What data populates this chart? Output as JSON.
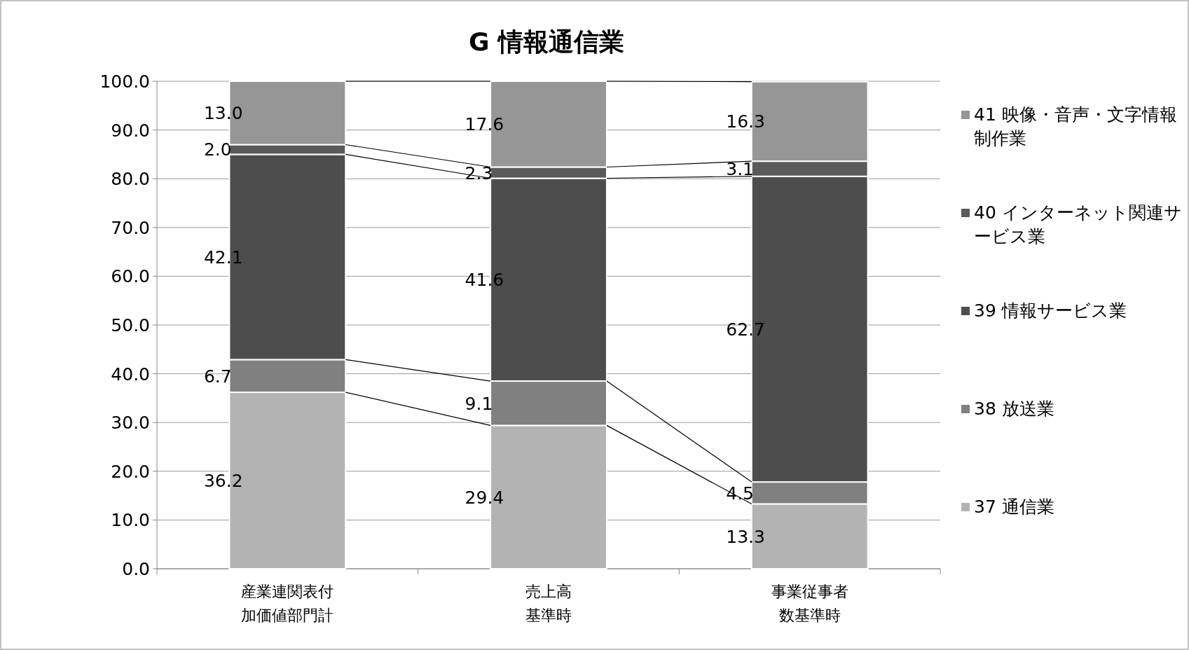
{
  "chart_data": {
    "type": "bar",
    "stacked": true,
    "title": "G 情報通信業",
    "categories": [
      "産業連関表付加価値部門計",
      "売上高基準時",
      "事業従事者数基準時"
    ],
    "series": [
      {
        "name": "37 通信業",
        "color": "#b3b3b3",
        "values": [
          36.2,
          29.4,
          13.3
        ],
        "value_labels": [
          "36.2",
          "29.4",
          "13.3"
        ]
      },
      {
        "name": "38 放送業",
        "color": "#808080",
        "values": [
          6.7,
          9.1,
          4.5
        ],
        "value_labels": [
          "6.7",
          "9.1",
          "4.5"
        ]
      },
      {
        "name": "39 情報サービス業",
        "color": "#4d4d4d",
        "values": [
          42.1,
          41.6,
          62.7
        ],
        "value_labels": [
          "42.1",
          "41.6",
          "62.7"
        ]
      },
      {
        "name": "40 インターネット関連サービス業",
        "color": "#5a5a5a",
        "values": [
          2.0,
          2.3,
          3.1
        ],
        "value_labels": [
          "2.0",
          "2.3",
          "3.1"
        ]
      },
      {
        "name": "41 映像・音声・文字情報制作業",
        "color": "#969696",
        "values": [
          13.0,
          17.6,
          16.3
        ],
        "value_labels": [
          "13.0",
          "17.6",
          "16.3"
        ]
      }
    ],
    "ylim": [
      0,
      100
    ],
    "yticks": [
      {
        "value": 0,
        "label": "0.0"
      },
      {
        "value": 10,
        "label": "10.0"
      },
      {
        "value": 20,
        "label": "20.0"
      },
      {
        "value": 30,
        "label": "30.0"
      },
      {
        "value": 40,
        "label": "40.0"
      },
      {
        "value": 50,
        "label": "50.0"
      },
      {
        "value": 60,
        "label": "60.0"
      },
      {
        "value": 70,
        "label": "70.0"
      },
      {
        "value": 80,
        "label": "80.0"
      },
      {
        "value": 90,
        "label": "90.0"
      },
      {
        "value": 100,
        "label": "100.0"
      }
    ],
    "grid": "y",
    "legend": "right"
  }
}
